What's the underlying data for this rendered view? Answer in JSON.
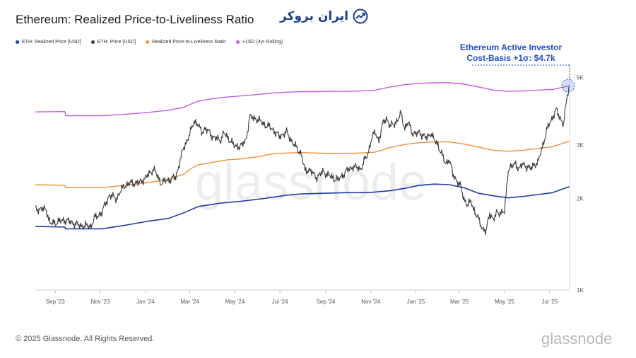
{
  "header": {
    "title": "Ethereum: Realized Price-to-Liveliness Ratio",
    "brand_text": "ایران بروکر"
  },
  "footer": {
    "copyright": "© 2025 Glassnode. All Rights Reserved.",
    "logo_text": "glassnode",
    "watermark": "glassnode"
  },
  "colors": {
    "realized": "#1f3fa8",
    "price": "#3a3a3a",
    "ratio": "#f0913a",
    "sd": "#c35ce8",
    "annotation": "#1f4fd1"
  },
  "chart_data": {
    "type": "line",
    "title": "Ethereum: Realized Price-to-Liveliness Ratio",
    "yscale": "log",
    "ylim": [
      1000,
      5400
    ],
    "y_ticks": [
      "1K",
      "2K",
      "3K",
      "5K"
    ],
    "y_tick_values": [
      1000,
      2000,
      3000,
      5000
    ],
    "x_range": [
      "2023-08-05",
      "2025-08-14"
    ],
    "x_ticks": [
      "Sep '23",
      "Nov '23",
      "Jan '24",
      "Mar '24",
      "May '24",
      "Jul '24",
      "Sep '24",
      "Nov '24",
      "Jan '25",
      "Mar '25",
      "May '25",
      "Jul '25"
    ],
    "x_tick_days": [
      27,
      88,
      149,
      209,
      270,
      331,
      393,
      454,
      515,
      574,
      635,
      696
    ],
    "legend": [
      "ETH: Realized Price [USD]",
      "ETH: Price [USD]",
      "Realized Price-to-Liveliness Ratio",
      "+1SD (4yr Rolling)"
    ],
    "annotation": {
      "line1": "Ethereum Active Investor",
      "line2": "Cost-Basis +1σ: $4.7k",
      "value": 4700
    },
    "series": [
      {
        "name": "ETH: Realized Price [USD]",
        "points": [
          [
            0,
            1620
          ],
          [
            40,
            1610
          ],
          [
            41,
            1590
          ],
          [
            90,
            1590
          ],
          [
            120,
            1630
          ],
          [
            150,
            1680
          ],
          [
            180,
            1720
          ],
          [
            200,
            1790
          ],
          [
            220,
            1880
          ],
          [
            250,
            1930
          ],
          [
            280,
            1960
          ],
          [
            310,
            2000
          ],
          [
            340,
            2050
          ],
          [
            360,
            2070
          ],
          [
            390,
            2080
          ],
          [
            420,
            2090
          ],
          [
            450,
            2090
          ],
          [
            480,
            2120
          ],
          [
            500,
            2160
          ],
          [
            520,
            2210
          ],
          [
            540,
            2230
          ],
          [
            560,
            2220
          ],
          [
            580,
            2170
          ],
          [
            600,
            2080
          ],
          [
            620,
            2040
          ],
          [
            640,
            2010
          ],
          [
            660,
            2030
          ],
          [
            680,
            2060
          ],
          [
            700,
            2090
          ],
          [
            723,
            2190
          ]
        ]
      },
      {
        "name": "ETH: Price [USD]",
        "points": [
          [
            0,
            1850
          ],
          [
            15,
            1840
          ],
          [
            20,
            1650
          ],
          [
            40,
            1700
          ],
          [
            60,
            1630
          ],
          [
            75,
            1620
          ],
          [
            80,
            1720
          ],
          [
            90,
            1800
          ],
          [
            100,
            2050
          ],
          [
            110,
            2000
          ],
          [
            120,
            2200
          ],
          [
            130,
            2250
          ],
          [
            140,
            2250
          ],
          [
            150,
            2350
          ],
          [
            160,
            2500
          ],
          [
            170,
            2250
          ],
          [
            180,
            2300
          ],
          [
            190,
            2350
          ],
          [
            200,
            2900
          ],
          [
            210,
            3300
          ],
          [
            215,
            3600
          ],
          [
            220,
            3500
          ],
          [
            225,
            3300
          ],
          [
            230,
            3400
          ],
          [
            240,
            3200
          ],
          [
            250,
            3100
          ],
          [
            255,
            3300
          ],
          [
            260,
            3150
          ],
          [
            265,
            3100
          ],
          [
            270,
            2950
          ],
          [
            280,
            3000
          ],
          [
            285,
            3100
          ],
          [
            290,
            3700
          ],
          [
            300,
            3650
          ],
          [
            310,
            3500
          ],
          [
            320,
            3400
          ],
          [
            330,
            3200
          ],
          [
            340,
            3300
          ],
          [
            345,
            3150
          ],
          [
            350,
            3000
          ],
          [
            360,
            2800
          ],
          [
            365,
            2450
          ],
          [
            370,
            2500
          ],
          [
            380,
            2350
          ],
          [
            390,
            2450
          ],
          [
            395,
            2400
          ],
          [
            400,
            2350
          ],
          [
            410,
            2300
          ],
          [
            420,
            2450
          ],
          [
            430,
            2550
          ],
          [
            440,
            2500
          ],
          [
            450,
            2800
          ],
          [
            455,
            3150
          ],
          [
            460,
            3300
          ],
          [
            465,
            3100
          ],
          [
            470,
            3500
          ],
          [
            475,
            3700
          ],
          [
            480,
            3450
          ],
          [
            490,
            3600
          ],
          [
            495,
            3800
          ],
          [
            500,
            3400
          ],
          [
            505,
            3550
          ],
          [
            510,
            3300
          ],
          [
            515,
            3250
          ],
          [
            520,
            3300
          ],
          [
            530,
            3150
          ],
          [
            535,
            3300
          ],
          [
            540,
            3100
          ],
          [
            545,
            3000
          ],
          [
            550,
            2800
          ],
          [
            555,
            2600
          ],
          [
            560,
            2700
          ],
          [
            565,
            2400
          ],
          [
            570,
            2300
          ],
          [
            575,
            2200
          ],
          [
            580,
            2000
          ],
          [
            585,
            1900
          ],
          [
            590,
            1950
          ],
          [
            595,
            1800
          ],
          [
            600,
            1700
          ],
          [
            605,
            1600
          ],
          [
            610,
            1550
          ],
          [
            615,
            1800
          ],
          [
            620,
            1700
          ],
          [
            625,
            1800
          ],
          [
            630,
            1800
          ],
          [
            635,
            1800
          ],
          [
            640,
            2500
          ],
          [
            645,
            2550
          ],
          [
            650,
            2600
          ],
          [
            655,
            2500
          ],
          [
            660,
            2600
          ],
          [
            665,
            2550
          ],
          [
            670,
            2500
          ],
          [
            675,
            2600
          ],
          [
            680,
            2600
          ],
          [
            685,
            2900
          ],
          [
            690,
            3200
          ],
          [
            695,
            3500
          ],
          [
            700,
            3700
          ],
          [
            705,
            3900
          ],
          [
            710,
            3700
          ],
          [
            715,
            3500
          ],
          [
            720,
            4400
          ],
          [
            723,
            4700
          ]
        ]
      },
      {
        "name": "Realized Price-to-Liveliness Ratio",
        "points": [
          [
            0,
            2220
          ],
          [
            40,
            2210
          ],
          [
            41,
            2170
          ],
          [
            90,
            2170
          ],
          [
            120,
            2210
          ],
          [
            150,
            2250
          ],
          [
            180,
            2310
          ],
          [
            200,
            2400
          ],
          [
            210,
            2500
          ],
          [
            220,
            2580
          ],
          [
            240,
            2630
          ],
          [
            260,
            2680
          ],
          [
            280,
            2700
          ],
          [
            300,
            2740
          ],
          [
            320,
            2800
          ],
          [
            340,
            2820
          ],
          [
            360,
            2830
          ],
          [
            380,
            2820
          ],
          [
            400,
            2810
          ],
          [
            420,
            2810
          ],
          [
            440,
            2820
          ],
          [
            460,
            2840
          ],
          [
            480,
            2940
          ],
          [
            500,
            3010
          ],
          [
            520,
            3050
          ],
          [
            540,
            3070
          ],
          [
            560,
            3070
          ],
          [
            580,
            3020
          ],
          [
            600,
            2950
          ],
          [
            620,
            2880
          ],
          [
            640,
            2860
          ],
          [
            660,
            2880
          ],
          [
            680,
            2920
          ],
          [
            700,
            2960
          ],
          [
            723,
            3090
          ]
        ]
      },
      {
        "name": "+1SD (4yr Rolling)",
        "points": [
          [
            0,
            3850
          ],
          [
            40,
            3860
          ],
          [
            41,
            3740
          ],
          [
            90,
            3740
          ],
          [
            120,
            3780
          ],
          [
            150,
            3830
          ],
          [
            180,
            3900
          ],
          [
            200,
            3980
          ],
          [
            210,
            4080
          ],
          [
            220,
            4170
          ],
          [
            240,
            4260
          ],
          [
            260,
            4310
          ],
          [
            280,
            4350
          ],
          [
            300,
            4390
          ],
          [
            320,
            4440
          ],
          [
            340,
            4470
          ],
          [
            360,
            4490
          ],
          [
            380,
            4490
          ],
          [
            400,
            4500
          ],
          [
            420,
            4500
          ],
          [
            440,
            4510
          ],
          [
            460,
            4540
          ],
          [
            480,
            4650
          ],
          [
            500,
            4730
          ],
          [
            520,
            4780
          ],
          [
            540,
            4800
          ],
          [
            560,
            4800
          ],
          [
            580,
            4750
          ],
          [
            600,
            4650
          ],
          [
            620,
            4540
          ],
          [
            640,
            4500
          ],
          [
            660,
            4510
          ],
          [
            680,
            4540
          ],
          [
            700,
            4560
          ],
          [
            715,
            4650
          ],
          [
            723,
            4700
          ]
        ]
      }
    ]
  }
}
